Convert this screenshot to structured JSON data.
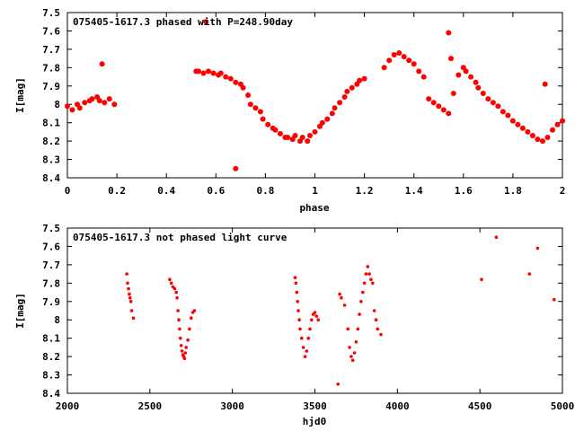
{
  "colors": {
    "point": "#ff0000",
    "axis": "#000000",
    "background": "#ffffff"
  },
  "chart_data": [
    {
      "type": "scatter",
      "title": "075405-1617.3 phased with P=248.90day",
      "xlabel": "phase",
      "ylabel": "I[mag]",
      "xlim": [
        0,
        2
      ],
      "ylim": [
        8.4,
        7.5
      ],
      "y_inverted": true,
      "grid": false,
      "marker": "filled circle",
      "xticks": [
        "0",
        "0.2",
        "0.4",
        "0.6",
        "0.8",
        "1",
        "1.2",
        "1.4",
        "1.6",
        "1.8",
        "2"
      ],
      "yticks": [
        "7.5",
        "7.6",
        "7.7",
        "7.8",
        "7.9",
        "8",
        "8.1",
        "8.2",
        "8.3",
        "8.4"
      ],
      "x": [
        0.0,
        0.02,
        0.04,
        0.05,
        0.07,
        0.09,
        0.1,
        0.12,
        0.13,
        0.14,
        0.15,
        0.17,
        0.19,
        0.52,
        0.53,
        0.55,
        0.57,
        0.59,
        0.61,
        0.62,
        0.64,
        0.66,
        0.68,
        0.7,
        0.71,
        0.73,
        0.74,
        0.76,
        0.78,
        0.79,
        0.81,
        0.83,
        0.84,
        0.86,
        0.88,
        0.89,
        0.91,
        0.92,
        0.94,
        0.95,
        0.97,
        0.98,
        1.0,
        1.02,
        1.03,
        1.05,
        1.07,
        1.08,
        1.1,
        1.12,
        1.13,
        1.15,
        1.17,
        1.18,
        1.2,
        1.28,
        1.3,
        1.32,
        1.34,
        1.36,
        1.38,
        1.4,
        1.42,
        1.44,
        1.46,
        1.48,
        1.5,
        1.52,
        1.54,
        1.56,
        1.58,
        1.6,
        1.61,
        1.63,
        1.65,
        1.66,
        1.68,
        1.7,
        1.72,
        1.74,
        1.76,
        1.78,
        1.8,
        1.82,
        1.84,
        1.86,
        1.88,
        1.9,
        1.92,
        1.94,
        1.96,
        1.98,
        2.0,
        0.56,
        0.68,
        1.54,
        1.55,
        1.93
      ],
      "y": [
        8.01,
        8.03,
        8.0,
        8.02,
        7.99,
        7.98,
        7.97,
        7.96,
        7.98,
        7.78,
        7.99,
        7.97,
        8.0,
        7.82,
        7.82,
        7.83,
        7.82,
        7.83,
        7.84,
        7.83,
        7.85,
        7.86,
        7.88,
        7.89,
        7.91,
        7.95,
        8.0,
        8.02,
        8.04,
        8.08,
        8.11,
        8.13,
        8.14,
        8.16,
        8.18,
        8.18,
        8.19,
        8.17,
        8.2,
        8.18,
        8.2,
        8.17,
        8.15,
        8.12,
        8.1,
        8.08,
        8.05,
        8.02,
        7.99,
        7.96,
        7.93,
        7.91,
        7.89,
        7.87,
        7.86,
        7.8,
        7.76,
        7.73,
        7.72,
        7.74,
        7.76,
        7.78,
        7.82,
        7.85,
        7.97,
        7.99,
        8.01,
        8.03,
        8.05,
        7.94,
        7.84,
        7.8,
        7.82,
        7.85,
        7.88,
        7.91,
        7.94,
        7.97,
        7.99,
        8.01,
        8.04,
        8.06,
        8.09,
        8.11,
        8.13,
        8.15,
        8.17,
        8.19,
        8.2,
        8.18,
        8.14,
        8.11,
        8.09,
        7.55,
        8.35,
        7.61,
        7.75,
        7.89
      ]
    },
    {
      "type": "scatter",
      "title": "075405-1617.3 not phased light curve",
      "xlabel": "hjd0",
      "ylabel": "I[mag]",
      "xlim": [
        2000,
        5000
      ],
      "ylim": [
        8.4,
        7.5
      ],
      "y_inverted": true,
      "grid": false,
      "marker": "small filled circle",
      "xticks": [
        "2000",
        "2500",
        "3000",
        "3500",
        "4000",
        "4500",
        "5000"
      ],
      "yticks": [
        "7.5",
        "7.6",
        "7.7",
        "7.8",
        "7.9",
        "8",
        "8.1",
        "8.2",
        "8.3",
        "8.4"
      ],
      "x": [
        2360,
        2365,
        2370,
        2375,
        2380,
        2385,
        2390,
        2400,
        2620,
        2630,
        2640,
        2650,
        2660,
        2665,
        2670,
        2675,
        2680,
        2685,
        2690,
        2695,
        2700,
        2705,
        2710,
        2715,
        2720,
        2730,
        2740,
        2750,
        2760,
        2770,
        3380,
        3385,
        3390,
        3395,
        3400,
        3405,
        3410,
        3420,
        3430,
        3440,
        3450,
        3460,
        3470,
        3480,
        3490,
        3500,
        3510,
        3520,
        3650,
        3660,
        3680,
        3700,
        3710,
        3720,
        3730,
        3740,
        3750,
        3760,
        3770,
        3780,
        3790,
        3800,
        3810,
        3820,
        3830,
        3840,
        3850,
        3860,
        3870,
        3880,
        3900,
        3640,
        4510,
        4600,
        4800,
        4850,
        4950
      ],
      "y": [
        7.75,
        7.8,
        7.83,
        7.86,
        7.88,
        7.9,
        7.95,
        7.99,
        7.78,
        7.8,
        7.82,
        7.83,
        7.85,
        7.88,
        7.95,
        8.0,
        8.05,
        8.1,
        8.14,
        8.17,
        8.19,
        8.2,
        8.21,
        8.18,
        8.15,
        8.11,
        8.05,
        7.99,
        7.96,
        7.95,
        7.77,
        7.8,
        7.85,
        7.9,
        7.95,
        8.0,
        8.05,
        8.1,
        8.15,
        8.2,
        8.17,
        8.1,
        8.05,
        8.0,
        7.97,
        7.96,
        7.98,
        8.0,
        7.86,
        7.88,
        7.92,
        8.05,
        8.15,
        8.2,
        8.22,
        8.18,
        8.12,
        8.05,
        7.97,
        7.9,
        7.85,
        7.8,
        7.75,
        7.71,
        7.75,
        7.78,
        7.8,
        7.95,
        8.0,
        8.05,
        8.08,
        8.35,
        7.78,
        7.55,
        7.75,
        7.61,
        7.89
      ]
    }
  ]
}
